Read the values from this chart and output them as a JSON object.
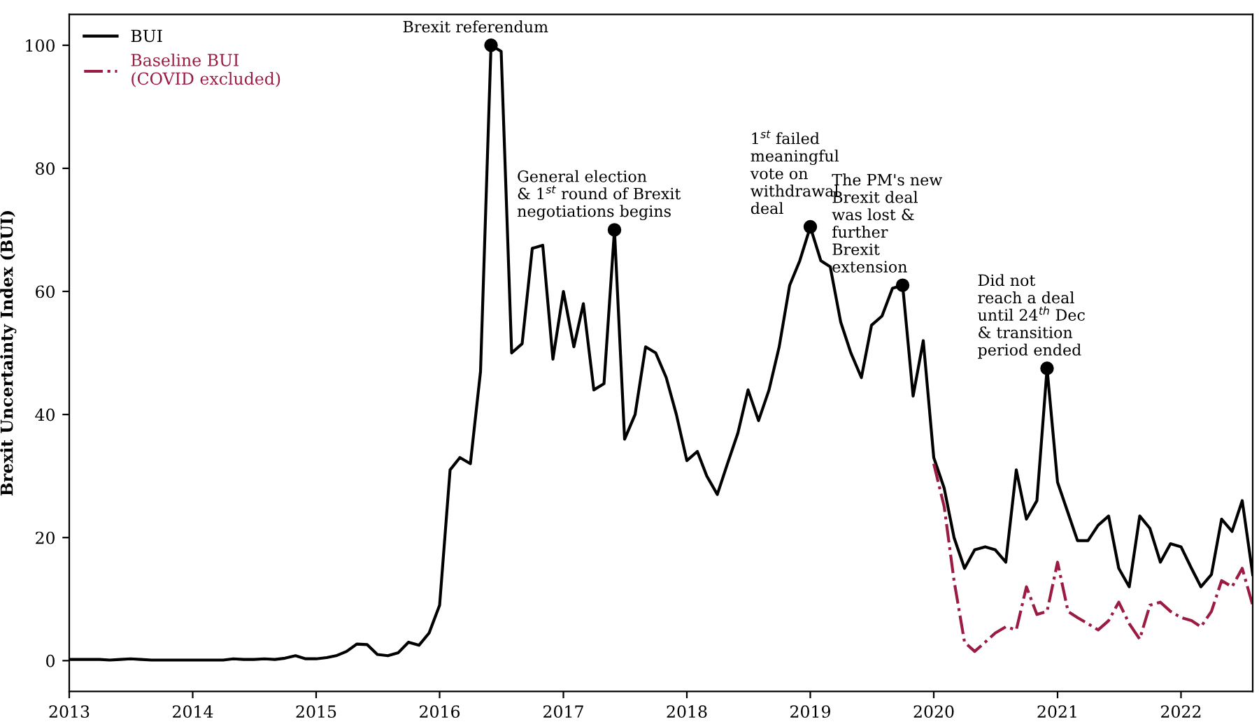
{
  "chart_data": {
    "type": "line",
    "ylabel": "Brexit Uncertainty Index (BUI)",
    "x": [
      "2013-01",
      "2013-02",
      "2013-03",
      "2013-04",
      "2013-05",
      "2013-06",
      "2013-07",
      "2013-08",
      "2013-09",
      "2013-10",
      "2013-11",
      "2013-12",
      "2014-01",
      "2014-02",
      "2014-03",
      "2014-04",
      "2014-05",
      "2014-06",
      "2014-07",
      "2014-08",
      "2014-09",
      "2014-10",
      "2014-11",
      "2014-12",
      "2015-01",
      "2015-02",
      "2015-03",
      "2015-04",
      "2015-05",
      "2015-06",
      "2015-07",
      "2015-08",
      "2015-09",
      "2015-10",
      "2015-11",
      "2015-12",
      "2016-01",
      "2016-02",
      "2016-03",
      "2016-04",
      "2016-05",
      "2016-06",
      "2016-07",
      "2016-08",
      "2016-09",
      "2016-10",
      "2016-11",
      "2016-12",
      "2017-01",
      "2017-02",
      "2017-03",
      "2017-04",
      "2017-05",
      "2017-06",
      "2017-07",
      "2017-08",
      "2017-09",
      "2017-10",
      "2017-11",
      "2017-12",
      "2018-01",
      "2018-02",
      "2018-03",
      "2018-04",
      "2018-05",
      "2018-06",
      "2018-07",
      "2018-08",
      "2018-09",
      "2018-10",
      "2018-11",
      "2018-12",
      "2019-01",
      "2019-02",
      "2019-03",
      "2019-04",
      "2019-05",
      "2019-06",
      "2019-07",
      "2019-08",
      "2019-09",
      "2019-10",
      "2019-11",
      "2019-12",
      "2020-01",
      "2020-02",
      "2020-03",
      "2020-04",
      "2020-05",
      "2020-06",
      "2020-07",
      "2020-08",
      "2020-09",
      "2020-10",
      "2020-11",
      "2020-12",
      "2021-01",
      "2021-02",
      "2021-03",
      "2021-04",
      "2021-05",
      "2021-06",
      "2021-07",
      "2021-08",
      "2021-09",
      "2021-10",
      "2021-11",
      "2021-12",
      "2022-01",
      "2022-02",
      "2022-03",
      "2022-04",
      "2022-05",
      "2022-06",
      "2022-07",
      "2022-08"
    ],
    "series": [
      {
        "name": "BUI",
        "color": "#000000",
        "line_style": "solid",
        "values": [
          0.2,
          0.2,
          0.2,
          0.2,
          0.1,
          0.2,
          0.3,
          0.2,
          0.1,
          0.1,
          0.1,
          0.1,
          0.1,
          0.1,
          0.1,
          0.1,
          0.3,
          0.2,
          0.2,
          0.3,
          0.2,
          0.4,
          0.8,
          0.3,
          0.3,
          0.5,
          0.8,
          1.5,
          2.7,
          2.6,
          1.0,
          0.8,
          1.3,
          3.0,
          2.5,
          4.5,
          9,
          31,
          33,
          32,
          47,
          100,
          99,
          50,
          51.5,
          67,
          67.5,
          49,
          60,
          51,
          58,
          44,
          45,
          70,
          36,
          40,
          51,
          50,
          46,
          40,
          32.5,
          34,
          30,
          27,
          32,
          37,
          44,
          39,
          44,
          51,
          61,
          65,
          70.5,
          65,
          64,
          55,
          50,
          46,
          54.5,
          56,
          60.5,
          61,
          43,
          52,
          33,
          28,
          20,
          15,
          18,
          18.5,
          18,
          16,
          31,
          23,
          26,
          47.5,
          29,
          24,
          19.5,
          19.5,
          22,
          23.5,
          15,
          12,
          23.5,
          21.5,
          16,
          19,
          18.5,
          15,
          12,
          14,
          23,
          21,
          26,
          14
        ]
      },
      {
        "name": "Baseline BUI\n(COVID excluded)",
        "color": "#9b1b42",
        "line_style": "dashdot",
        "x": [
          "2020-01",
          "2020-02",
          "2020-03",
          "2020-04",
          "2020-05",
          "2020-06",
          "2020-07",
          "2020-08",
          "2020-09",
          "2020-10",
          "2020-11",
          "2020-12",
          "2021-01",
          "2021-02",
          "2021-03",
          "2021-04",
          "2021-05",
          "2021-06",
          "2021-07",
          "2021-08",
          "2021-09",
          "2021-10",
          "2021-11",
          "2021-12",
          "2022-01",
          "2022-02",
          "2022-03",
          "2022-04",
          "2022-05",
          "2022-06",
          "2022-07",
          "2022-08"
        ],
        "values": [
          32,
          25,
          13,
          3,
          1.5,
          3,
          4.5,
          5.5,
          5,
          12,
          7.5,
          8,
          16,
          8,
          7,
          6,
          5,
          6.5,
          9.5,
          6,
          3.5,
          9,
          9.5,
          8,
          7,
          6.5,
          5.5,
          8,
          13,
          12,
          15,
          9
        ]
      }
    ],
    "xlim": [
      "2013-01",
      "2022-08"
    ],
    "xticks": [
      "2013",
      "2014",
      "2015",
      "2016",
      "2017",
      "2018",
      "2019",
      "2020",
      "2021",
      "2022"
    ],
    "ylim": [
      -5,
      105
    ],
    "yticks": [
      0,
      20,
      40,
      60,
      80,
      100
    ],
    "grid": false,
    "legend": "top left",
    "marker": "none",
    "annotations": [
      {
        "text": "Brexit referendum",
        "x": "2016-06",
        "y": 100
      },
      {
        "text": "General election\n& 1$^{st}$ round of Brexit\nnegotiations begins",
        "x": "2017-06",
        "y": 70
      },
      {
        "text": "1$^{st}$ failed\nmeaningful\nvote on\nwithdrawal\ndeal",
        "x": "2019-01",
        "y": 70.5
      },
      {
        "text": "The PM's new\nBrexit deal\nwas lost &\nfurther\nBrexit\nextension",
        "x": "2019-10",
        "y": 61
      },
      {
        "text": "Did not\nreach a deal\nuntil 24$^{th}$ Dec\n& transition\nperiod ended",
        "x": "2020-12",
        "y": 47.5
      }
    ]
  }
}
